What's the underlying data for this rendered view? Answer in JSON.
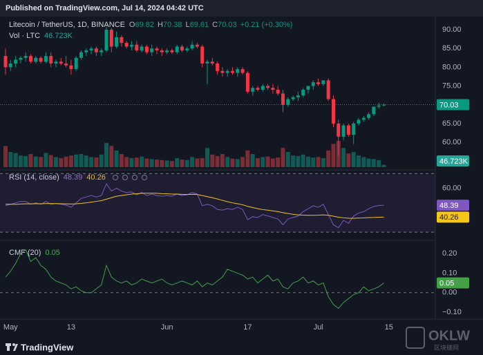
{
  "header": {
    "published": "Published on TradingView.com, Jul 14, 2024 04:42 UTC",
    "brand": "TradingView",
    "watermark": "OKLW",
    "watermark_sub": "区块链网"
  },
  "chart_data": [
    {
      "type": "candlestick",
      "title": "Litecoin / TetherUS, 1D, BINANCE",
      "ohlc_labels": [
        "O",
        "H",
        "L",
        "C"
      ],
      "change": "+0.21 (+0.30%)",
      "up_color": "#089981",
      "down_color": "#f23645",
      "open": [
        83,
        80,
        81,
        82,
        82.5,
        83,
        81.5,
        82.5,
        81.5,
        83,
        81,
        81.5,
        81,
        80.5,
        79.5,
        82.5,
        84,
        84.5,
        85,
        84,
        84.5,
        90,
        85.5,
        88,
        86.5,
        85.5,
        86,
        84.5,
        85.5,
        84,
        85,
        84.5,
        84,
        84.5,
        84,
        85.5,
        84.5,
        85,
        86,
        85.5,
        81,
        81.5,
        81,
        79,
        78.5,
        79,
        78.5,
        79.5,
        78.5,
        73.5,
        74.5,
        74,
        75,
        74.5,
        74,
        73,
        70,
        71.5,
        72,
        72.5,
        74,
        75,
        76,
        75.5,
        76.5,
        71.5,
        65,
        61.5,
        64.5,
        62,
        65,
        66,
        66.5,
        67.5,
        69.5,
        69.82
      ],
      "high": [
        85,
        82,
        83,
        83,
        84,
        83.5,
        83,
        83,
        84,
        84,
        82,
        82.5,
        83,
        82,
        83,
        84.5,
        85,
        85.5,
        85.5,
        85,
        91,
        90.5,
        89.5,
        88.5,
        87,
        87,
        87,
        86,
        86,
        86,
        85.5,
        85,
        85,
        85,
        86,
        86,
        85.5,
        87,
        86.5,
        86,
        82,
        82.5,
        81.5,
        80,
        79.5,
        80,
        80,
        80,
        79,
        75,
        75,
        75.5,
        75.5,
        75.5,
        75,
        74,
        72,
        72.5,
        73.5,
        74.5,
        75,
        76.5,
        77,
        76.5,
        77,
        72.5,
        66,
        65,
        65,
        65.5,
        66.5,
        67,
        68,
        69.5,
        70.5,
        70.38
      ],
      "low": [
        78,
        79,
        80,
        81,
        81.5,
        81,
        81,
        81,
        81,
        80,
        80,
        80.5,
        80,
        78,
        79,
        82,
        83,
        83.5,
        83,
        83,
        84,
        84,
        85,
        85.5,
        85,
        84.5,
        84,
        84,
        83.5,
        83,
        83.5,
        83,
        83.5,
        83.5,
        83.5,
        84,
        84,
        84.5,
        85,
        80,
        75.5,
        80.5,
        78,
        77.5,
        77.5,
        78,
        77.5,
        78,
        73,
        72.5,
        73.5,
        73.5,
        74,
        73,
        72.5,
        68,
        69.5,
        71,
        71,
        72,
        73,
        74,
        75,
        75,
        71,
        64,
        56.5,
        60.5,
        61.5,
        59.5,
        64.5,
        65.5,
        66,
        67,
        69,
        69.61
      ],
      "close": [
        80,
        81,
        82,
        82.5,
        83,
        81.5,
        82.5,
        81.5,
        83,
        81,
        81.5,
        81,
        80.5,
        79.5,
        82.5,
        84,
        84.5,
        85,
        84,
        84.5,
        90,
        85.5,
        88,
        86.5,
        85.5,
        86,
        84.5,
        85.5,
        84,
        85,
        84.5,
        84,
        84.5,
        84,
        85.5,
        84.5,
        85,
        86,
        85.5,
        81,
        81.5,
        81,
        79,
        78.5,
        79,
        78.5,
        79.5,
        78.5,
        73.5,
        74.5,
        74,
        75,
        74.5,
        74,
        73,
        70,
        71.5,
        72,
        72.5,
        74,
        75,
        76,
        75.5,
        76.5,
        71.5,
        65,
        61.5,
        64.5,
        62,
        65,
        66,
        66.5,
        67.5,
        69.5,
        69.8,
        70.03
      ],
      "volume": {
        "name": "Vol · LTC",
        "up_color": "#0f5c56",
        "down_color": "#7b2c35",
        "last_label": "46.723K",
        "values": [
          420,
          300,
          280,
          230,
          220,
          260,
          210,
          200,
          280,
          240,
          200,
          180,
          210,
          230,
          250,
          260,
          230,
          200,
          190,
          250,
          480,
          420,
          330,
          260,
          200,
          180,
          190,
          210,
          170,
          160,
          150,
          140,
          130,
          120,
          180,
          150,
          140,
          200,
          170,
          180,
          380,
          250,
          220,
          260,
          200,
          170,
          160,
          200,
          330,
          260,
          180,
          200,
          210,
          170,
          190,
          380,
          300,
          230,
          220,
          250,
          210,
          190,
          200,
          180,
          330,
          460,
          520,
          380,
          270,
          300,
          230,
          200,
          170,
          160,
          140,
          46.723
        ]
      },
      "ylim": [
        53.2,
        92.4
      ],
      "yticks": [
        {
          "value": 60,
          "label": "60.00"
        },
        {
          "value": 65,
          "label": "65.00"
        },
        {
          "value": 70,
          "label": "70.00"
        },
        {
          "value": 75,
          "label": "75.00"
        },
        {
          "value": 80,
          "label": "80.00"
        },
        {
          "value": 85,
          "label": "85.00"
        },
        {
          "value": 90,
          "label": "90.00"
        }
      ],
      "xticks": [
        {
          "value": 1,
          "label": "May"
        },
        {
          "value": 13,
          "label": "13"
        },
        {
          "value": 32,
          "label": "Jun"
        },
        {
          "value": 48,
          "label": "17"
        },
        {
          "value": 62,
          "label": "Jul"
        },
        {
          "value": 76,
          "label": "15"
        }
      ]
    },
    {
      "type": "line",
      "title": "RSI (14, close)",
      "ylim": [
        25.8,
        70.6
      ],
      "yticks": [
        {
          "value": 60,
          "label": "60.00"
        }
      ],
      "bands": [
        70,
        30
      ],
      "series": [
        {
          "color": "#7e57c2",
          "values": [
            48,
            49,
            50,
            51,
            51,
            49,
            50,
            49,
            51,
            49,
            49.5,
            49,
            48.5,
            47,
            50,
            53,
            54,
            55,
            54,
            55,
            63,
            58,
            60,
            58,
            57,
            57.5,
            55.5,
            57,
            55,
            56,
            55,
            54.5,
            55,
            54.5,
            56,
            55,
            55.5,
            57,
            56,
            48,
            49,
            48,
            45.5,
            45,
            46,
            45.5,
            47,
            45.5,
            38.5,
            40.5,
            40,
            42,
            41,
            40,
            39,
            35,
            39,
            40,
            41,
            44,
            46,
            48,
            47,
            49,
            42,
            35,
            33,
            38,
            36,
            41,
            43,
            44,
            46,
            47.5,
            48.2,
            48.39
          ]
        },
        {
          "color": "#f5c518",
          "values": [
            49,
            49,
            49,
            49.2,
            49.3,
            49.3,
            49.4,
            49.4,
            49.5,
            49.5,
            49.5,
            49.4,
            49.3,
            49.2,
            49.3,
            49.6,
            50,
            50.5,
            51,
            51.5,
            52.5,
            53.5,
            54.5,
            55,
            55.5,
            56,
            56.2,
            56.5,
            56.6,
            56.6,
            56.5,
            56.3,
            56.2,
            56,
            56,
            55.8,
            55.7,
            55.8,
            55.7,
            55,
            54.2,
            53.5,
            52.6,
            51.7,
            50.8,
            50,
            49.4,
            48.7,
            47.6,
            46.8,
            46,
            45.4,
            45,
            44.5,
            44,
            43.3,
            42.7,
            42.2,
            41.8,
            41.6,
            41.5,
            41.5,
            41.6,
            41.8,
            41.5,
            40.9,
            40.2,
            39.8,
            39.5,
            39.5,
            39.6,
            39.7,
            39.9,
            40,
            40.2,
            40.26
          ]
        }
      ]
    },
    {
      "type": "line",
      "title": "CMF (20)",
      "ylim": [
        -0.128,
        0.254
      ],
      "yticks": [
        {
          "value": 0.2,
          "label": "0.20"
        },
        {
          "value": 0.1,
          "label": "0.10"
        },
        {
          "value": 0,
          "label": "0.00"
        },
        {
          "value": -0.1,
          "label": "−0.10"
        }
      ],
      "baseline": 0,
      "series": [
        {
          "color": "#43a047",
          "values": [
            0.08,
            0.11,
            0.15,
            0.2,
            0.22,
            0.16,
            0.18,
            0.14,
            0.12,
            0.08,
            0.06,
            0.05,
            0.04,
            0.02,
            0.03,
            0.01,
            0,
            0,
            0.02,
            0.04,
            0.14,
            0.08,
            0.06,
            0.05,
            0.06,
            0.04,
            0.05,
            0.07,
            0.06,
            0.05,
            0.06,
            0.07,
            0.05,
            0.04,
            0.05,
            0.06,
            0.05,
            0.04,
            0.06,
            0.03,
            0.05,
            0.04,
            0.06,
            0.08,
            0.12,
            0.11,
            0.1,
            0.09,
            0.07,
            0.08,
            0.05,
            0.07,
            0.09,
            0.06,
            0.07,
            0.03,
            0.02,
            0.05,
            0.06,
            0.08,
            0.05,
            0.06,
            0.04,
            0.05,
            -0.02,
            -0.06,
            -0.08,
            -0.05,
            -0.03,
            -0.01,
            0,
            0.03,
            0.01,
            0.02,
            0.03,
            0.05
          ]
        }
      ]
    }
  ]
}
